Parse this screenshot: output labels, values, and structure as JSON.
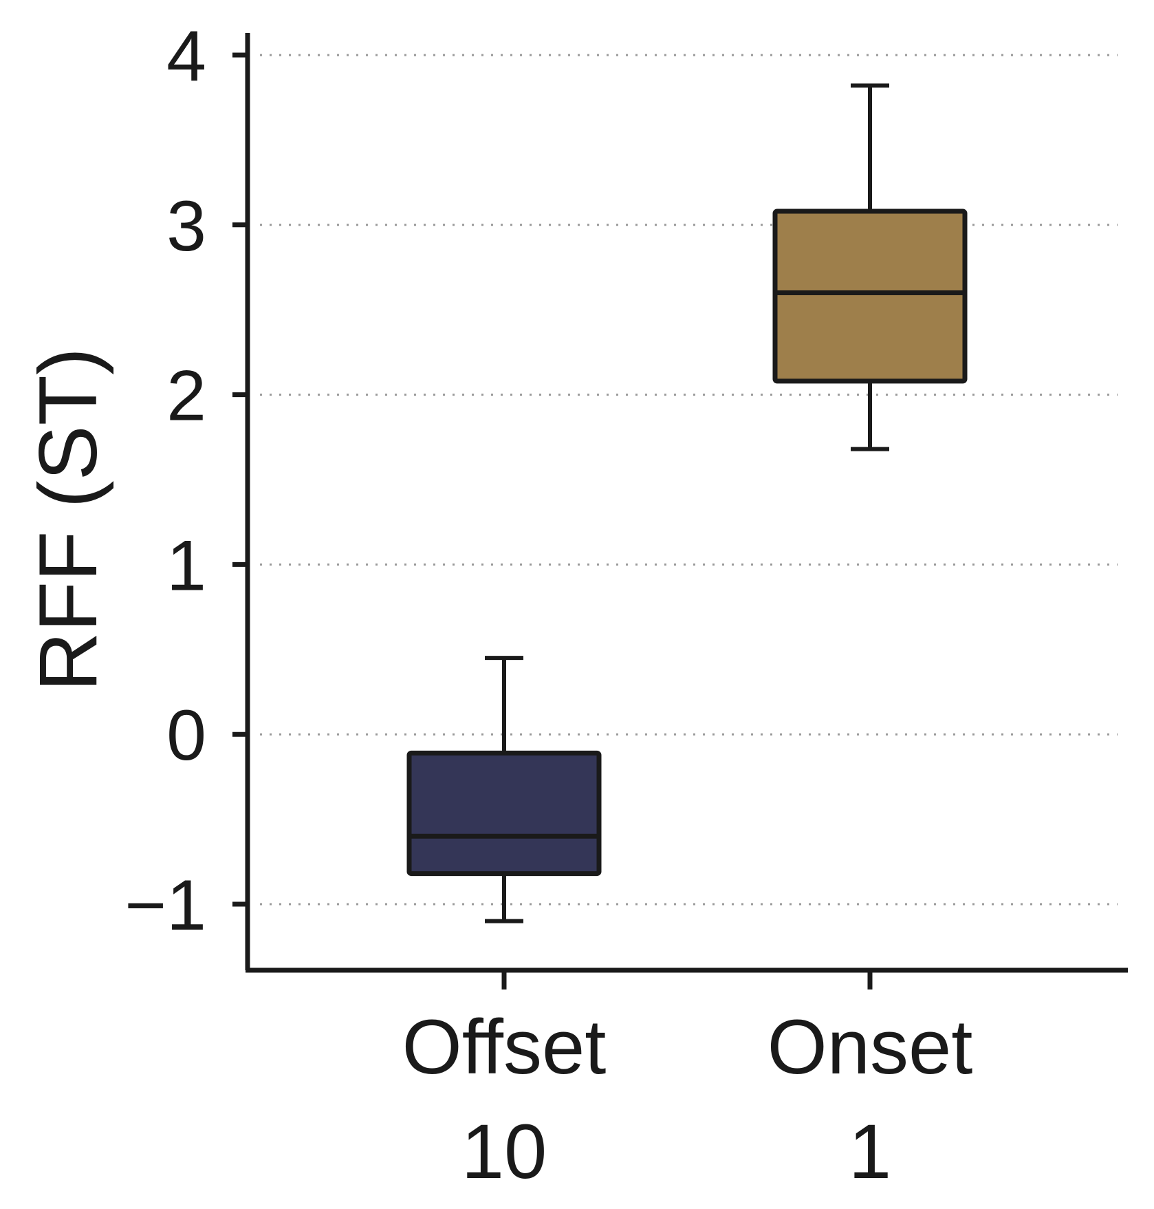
{
  "chart_data": {
    "type": "boxplot",
    "ylabel": "RFF (ST)",
    "xlabel": "",
    "ylim": [
      -1.4,
      4.15
    ],
    "yticks": [
      -1,
      0,
      1,
      2,
      3,
      4
    ],
    "ytick_labels": [
      "−1",
      "0",
      "1",
      "2",
      "3",
      "4"
    ],
    "grid": "horizontal-dotted",
    "categories": [
      {
        "name": "Offset",
        "sublabel": "10"
      },
      {
        "name": "Onset",
        "sublabel": "1"
      }
    ],
    "boxes": [
      {
        "category": "Offset",
        "whisker_low": -1.1,
        "q1": -0.82,
        "median": -0.6,
        "q3": -0.11,
        "whisker_high": 0.45,
        "color": "#343657"
      },
      {
        "category": "Onset",
        "whisker_low": 1.68,
        "q1": 2.08,
        "median": 2.6,
        "q3": 3.08,
        "whisker_high": 3.82,
        "color": "#9e7f4b"
      }
    ]
  }
}
